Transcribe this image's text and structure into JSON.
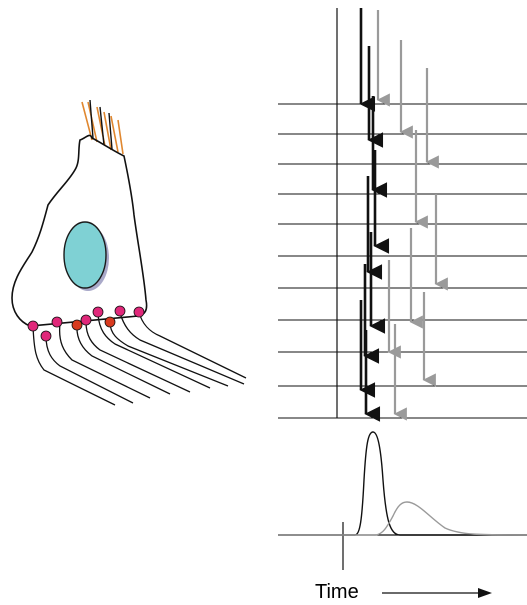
{
  "figure": {
    "time_label": "Time"
  },
  "colors": {
    "cell_outline": "#111111",
    "nucleus_fill": "#7fd1d4",
    "nucleus_stroke": "#1a1a1a",
    "nucleus_shadow": "#a9a9c9",
    "apical_hairs": "#e0872f",
    "synapse_pink": "#e0287a",
    "synapse_red": "#d83a1e",
    "fiber": "#111111",
    "early_spike": "#111111",
    "late_spike": "#9a9a9a",
    "line": "#111111"
  },
  "legend": {
    "early_spike_color": "black",
    "late_spike_color": "gray"
  }
}
